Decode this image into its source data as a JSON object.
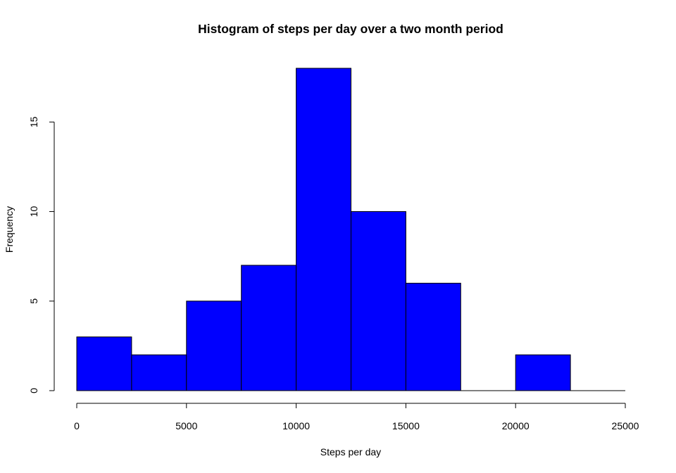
{
  "chart_data": {
    "type": "bar",
    "title": "Histogram of steps per day over a two month period",
    "xlabel": "Steps per day",
    "ylabel": "Frequency",
    "bin_edges": [
      0,
      2500,
      5000,
      7500,
      10000,
      12500,
      15000,
      17500,
      20000,
      22500,
      25000
    ],
    "values": [
      3,
      2,
      5,
      7,
      18,
      10,
      6,
      0,
      2,
      0
    ],
    "xlim": [
      0,
      25000
    ],
    "ylim": [
      0,
      18
    ],
    "x_ticks": [
      0,
      5000,
      10000,
      15000,
      20000,
      25000
    ],
    "y_ticks": [
      0,
      5,
      10,
      15
    ],
    "bar_color": "#0000ff",
    "grid": false
  }
}
